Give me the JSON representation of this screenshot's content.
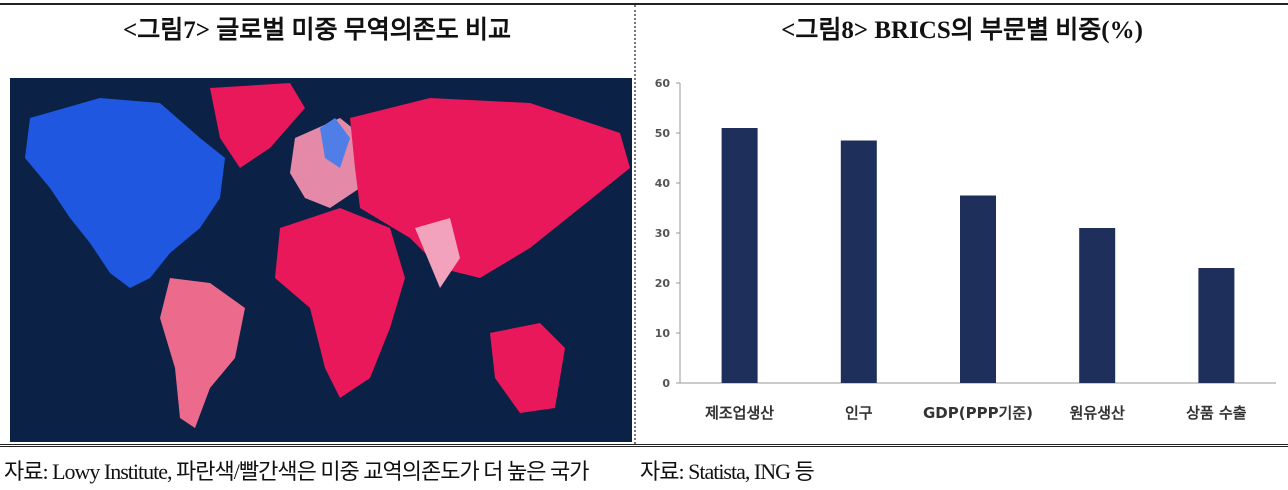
{
  "left": {
    "title": "<그림7> 글로벌 미중 무역의존도 비교",
    "caption": "자료: Lowy Institute, 파란색/빨간색은 미중 교역의존도가 더 높은 국가"
  },
  "chart_data": {
    "type": "bar",
    "title": "<그림8> BRICS의 부문별 비중(%)",
    "categories": [
      "제조업생산",
      "인구",
      "GDP(PPP기준)",
      "원유생산",
      "상품 수출"
    ],
    "values": [
      51,
      48.5,
      37.5,
      31,
      23
    ],
    "color": "#1f2f5c",
    "ylim": [
      0,
      60
    ],
    "yticks": [
      0,
      10,
      20,
      30,
      40,
      50,
      60
    ]
  },
  "right": {
    "caption": "자료: Statista, ING 등"
  }
}
